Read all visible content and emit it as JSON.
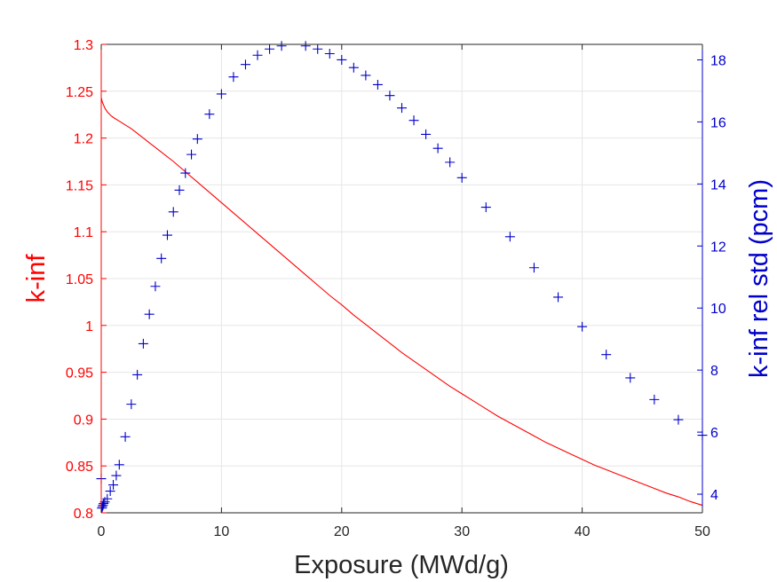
{
  "chart_data": {
    "type": "line",
    "title": "",
    "xlabel": "Exposure (MWd/g)",
    "xlim": [
      0,
      50
    ],
    "xticks": [
      "0",
      "10",
      "20",
      "30",
      "40",
      "50"
    ],
    "grid": true,
    "y_left": {
      "label": "k-inf",
      "color": "#ff0000",
      "ylim": [
        0.8,
        1.3
      ],
      "ticks": [
        "0.8",
        "0.85",
        "0.9",
        "0.95",
        "1",
        "1.05",
        "1.1",
        "1.15",
        "1.2",
        "1.25",
        "1.3"
      ]
    },
    "y_right": {
      "label": "k-inf rel std (pcm)",
      "color": "#0000cc",
      "ylim": [
        3.4,
        18.5
      ],
      "ticks": [
        "4",
        "6",
        "8",
        "10",
        "12",
        "14",
        "16",
        "18"
      ]
    },
    "series": [
      {
        "type": "line",
        "axis": "left",
        "color": "#ff0000",
        "x": [
          0,
          0.1,
          0.2,
          0.3,
          0.5,
          0.8,
          1.0,
          1.5,
          2,
          2.5,
          3,
          3.5,
          4,
          5,
          6,
          7,
          8,
          9,
          10,
          11,
          12,
          13,
          14,
          15,
          16,
          17,
          18,
          19,
          20,
          21,
          22,
          23,
          24,
          25,
          26,
          27,
          28,
          29,
          30,
          31,
          32,
          33,
          34,
          35,
          36,
          37,
          38,
          39,
          40,
          41,
          42,
          43,
          44,
          45,
          46,
          47,
          48,
          49,
          50
        ],
        "y": [
          1.243,
          1.238,
          1.235,
          1.232,
          1.228,
          1.224,
          1.222,
          1.218,
          1.214,
          1.21,
          1.205,
          1.2,
          1.195,
          1.185,
          1.175,
          1.164,
          1.153,
          1.142,
          1.131,
          1.12,
          1.109,
          1.098,
          1.087,
          1.076,
          1.065,
          1.054,
          1.043,
          1.032,
          1.022,
          1.011,
          1.001,
          0.991,
          0.981,
          0.971,
          0.962,
          0.953,
          0.944,
          0.935,
          0.927,
          0.919,
          0.911,
          0.903,
          0.896,
          0.889,
          0.882,
          0.875,
          0.869,
          0.863,
          0.857,
          0.851,
          0.846,
          0.841,
          0.836,
          0.831,
          0.826,
          0.821,
          0.817,
          0.812,
          0.808
        ]
      },
      {
        "type": "scatter",
        "axis": "right",
        "marker": "+",
        "color": "#0000cc",
        "x": [
          0,
          0.05,
          0.1,
          0.15,
          0.2,
          0.3,
          0.5,
          0.75,
          1.0,
          1.25,
          1.5,
          2,
          2.5,
          3,
          3.5,
          4,
          4.5,
          5,
          5.5,
          6,
          6.5,
          7,
          7.5,
          8,
          9,
          10,
          11,
          12,
          13,
          14,
          15,
          17,
          18,
          19,
          20,
          21,
          22,
          23,
          24,
          25,
          26,
          27,
          28,
          29,
          30,
          32,
          34,
          36,
          38,
          40,
          42,
          44,
          46,
          48,
          50
        ],
        "y": [
          4.5,
          3.55,
          3.6,
          3.65,
          3.7,
          3.75,
          3.85,
          4.1,
          4.3,
          4.6,
          4.95,
          5.85,
          6.9,
          7.85,
          8.85,
          9.8,
          10.7,
          11.6,
          12.35,
          13.1,
          13.8,
          14.35,
          14.95,
          15.45,
          16.25,
          16.9,
          17.45,
          17.85,
          18.15,
          18.35,
          18.45,
          18.45,
          18.35,
          18.2,
          18.0,
          17.75,
          17.5,
          17.2,
          16.85,
          16.45,
          16.05,
          15.6,
          15.15,
          14.7,
          14.2,
          13.25,
          12.3,
          11.3,
          10.35,
          9.4,
          8.5,
          7.75,
          7.05,
          6.4,
          5.9
        ]
      }
    ]
  }
}
